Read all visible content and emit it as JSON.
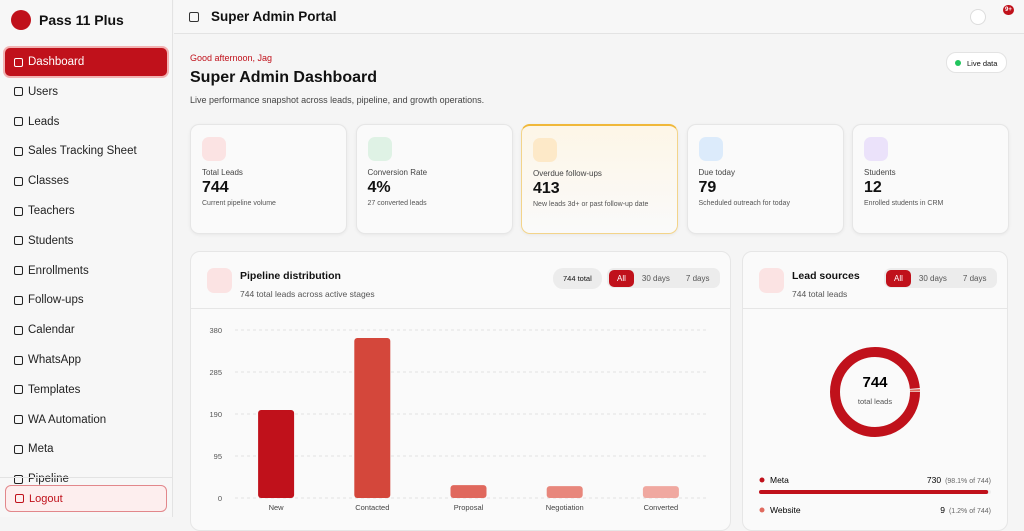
{
  "sidebar": {
    "brand": "Pass 11 Plus",
    "nav": [
      "Dashboard",
      "Users",
      "Leads",
      "Sales Tracking Sheet",
      "Classes",
      "Teachers",
      "Students",
      "Enrollments",
      "Follow-ups",
      "Calendar",
      "WhatsApp",
      "Templates",
      "WA Automation",
      "Meta",
      "Pipeline"
    ],
    "logout": "Logout"
  },
  "header": {
    "title": "Super Admin Portal",
    "badge": "9+"
  },
  "intro": {
    "greeting": "Good afternoon, Jag",
    "title": "Super Admin Dashboard",
    "subtitle": "Live performance snapshot across leads, pipeline, and growth operations.",
    "live": "Live data"
  },
  "cards": [
    {
      "label": "Total Leads",
      "value": "744",
      "note": "Current pipeline volume"
    },
    {
      "label": "Conversion Rate",
      "value": "4%",
      "note": "27 converted leads"
    },
    {
      "label": "Overdue follow-ups",
      "value": "413",
      "note": "New leads 3d+ or past follow-up date"
    },
    {
      "label": "Due today",
      "value": "79",
      "note": "Scheduled outreach for today"
    },
    {
      "label": "Students",
      "value": "12",
      "note": "Enrolled students in CRM"
    }
  ],
  "pipeline": {
    "title": "Pipeline distribution",
    "subtitle": "744 total leads across active stages",
    "badge": "744 total",
    "filters": [
      "All",
      "30 days",
      "7 days"
    ],
    "chart_data": {
      "type": "bar",
      "categories": [
        "New",
        "Contacted",
        "Proposal",
        "Negotiation",
        "Converted"
      ],
      "values": [
        199,
        362,
        29,
        27,
        27
      ],
      "colors": [
        "#c0111b",
        "#d4473b",
        "#e0685d",
        "#e8877c",
        "#f0a8a0"
      ],
      "ylim": [
        0,
        380
      ],
      "yticks": [
        0,
        95,
        190,
        285,
        380
      ],
      "grid": true
    }
  },
  "lead_sources": {
    "title": "Lead sources",
    "subtitle": "744 total leads",
    "filters": [
      "All",
      "30 days",
      "7 days"
    ],
    "center_value": "744",
    "center_label": "total leads",
    "items": [
      {
        "name": "Meta",
        "value": 730,
        "share": "(98.1% of 744)",
        "color": "#c0111b"
      },
      {
        "name": "Website",
        "value": 9,
        "share": "(1.2% of 744)",
        "color": "#e06a5e"
      }
    ]
  }
}
